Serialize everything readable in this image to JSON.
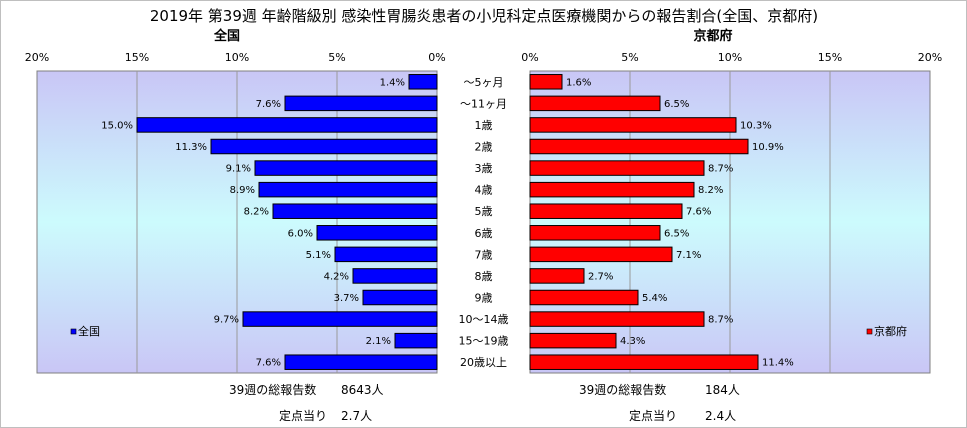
{
  "title": "2019年 第39週 年齢階級別 感染性胃腸炎患者の小児科定点医療機関からの報告割合(全国、京都府)",
  "chart_data": {
    "type": "bar",
    "orientation": "horizontal",
    "categories": [
      "～5ヶ月",
      "～11ヶ月",
      "1歳",
      "2歳",
      "3歳",
      "4歳",
      "5歳",
      "6歳",
      "7歳",
      "8歳",
      "9歳",
      "10～14歳",
      "15～19歳",
      "20歳以上"
    ],
    "xlim": [
      0,
      20
    ],
    "x_ticks": [
      0,
      5,
      10,
      15,
      20
    ],
    "tick_suffix": "%",
    "panels": [
      {
        "label": "全国",
        "legend": "全国",
        "color": "#0000ff",
        "direction": "left",
        "values": [
          1.4,
          7.6,
          15.0,
          11.3,
          9.1,
          8.9,
          8.2,
          6.0,
          5.1,
          4.2,
          3.7,
          9.7,
          2.1,
          7.6
        ],
        "value_labels": [
          "1.4%",
          "7.6%",
          "15.0%",
          "11.3%",
          "9.1%",
          "8.9%",
          "8.2%",
          "6.0%",
          "5.1%",
          "4.2%",
          "3.7%",
          "9.7%",
          "2.1%",
          "7.6%"
        ]
      },
      {
        "label": "京都府",
        "legend": "京都府",
        "color": "#ff0000",
        "direction": "right",
        "values": [
          1.6,
          6.5,
          10.3,
          10.9,
          8.7,
          8.2,
          7.6,
          6.5,
          7.1,
          2.7,
          5.4,
          8.7,
          4.3,
          11.4
        ],
        "value_labels": [
          "1.6%",
          "6.5%",
          "10.3%",
          "10.9%",
          "8.7%",
          "8.2%",
          "7.6%",
          "6.5%",
          "7.1%",
          "2.7%",
          "5.4%",
          "8.7%",
          "4.3%",
          "11.4%"
        ]
      }
    ]
  },
  "footer": {
    "national": {
      "total_label": "39週の総報告数",
      "total_value": "8643人",
      "per_label": "定点当り",
      "per_value": "2.7人"
    },
    "kyoto": {
      "total_label": "39週の総報告数",
      "total_value": "184人",
      "per_label": "定点当り",
      "per_value": "2.4人"
    }
  }
}
